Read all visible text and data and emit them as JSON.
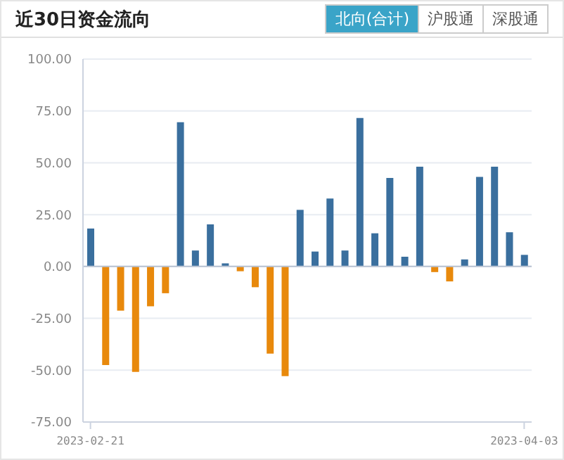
{
  "chart_data": {
    "type": "bar",
    "title": "近30日资金流向",
    "annotations": [
      "北向(合计)",
      "沪股通",
      "深股通"
    ],
    "categories": [
      "2023-02-21",
      null,
      null,
      null,
      null,
      null,
      null,
      null,
      null,
      null,
      null,
      null,
      null,
      null,
      null,
      null,
      null,
      null,
      null,
      null,
      null,
      null,
      null,
      null,
      null,
      null,
      null,
      null,
      null,
      "2023-04-03"
    ],
    "values": [
      18.3,
      -47.5,
      -21.3,
      -50.8,
      -19.2,
      -12.9,
      69.6,
      7.7,
      20.3,
      1.5,
      -2.3,
      -10,
      -42,
      -52.9,
      27.3,
      7.2,
      32.8,
      7.7,
      71.6,
      16,
      42.7,
      4.7,
      48.1,
      -2.7,
      -7.2,
      3.4,
      43.2,
      48.1,
      16.5,
      5.6
    ],
    "colors": [
      "#3a6f9e",
      "#e8890c",
      "#e8890c",
      "#e8890c",
      "#e8890c",
      "#e8890c",
      "#3a6f9e",
      "#3a6f9e",
      "#3a6f9e",
      "#3a6f9e",
      "#e8890c",
      "#e8890c",
      "#e8890c",
      "#e8890c",
      "#3a6f9e",
      "#3a6f9e",
      "#3a6f9e",
      "#3a6f9e",
      "#3a6f9e",
      "#3a6f9e",
      "#3a6f9e",
      "#3a6f9e",
      "#3a6f9e",
      "#e8890c",
      "#e8890c",
      "#3a6f9e",
      "#3a6f9e",
      "#3a6f9e",
      "#3a6f9e",
      "#3a6f9e"
    ],
    "ylim": [
      -75,
      100
    ],
    "yticks": [
      {
        "value": -75,
        "label": "-75.00"
      },
      {
        "value": -50,
        "label": "-50.00"
      },
      {
        "value": -25,
        "label": "-25.00"
      },
      {
        "value": 0,
        "label": "0.00"
      },
      {
        "value": 25,
        "label": "25.00"
      },
      {
        "value": 50,
        "label": "50.00"
      },
      {
        "value": 75,
        "label": "75.00"
      },
      {
        "value": 100,
        "label": "100.00"
      }
    ],
    "grid": "y",
    "legend": false
  }
}
